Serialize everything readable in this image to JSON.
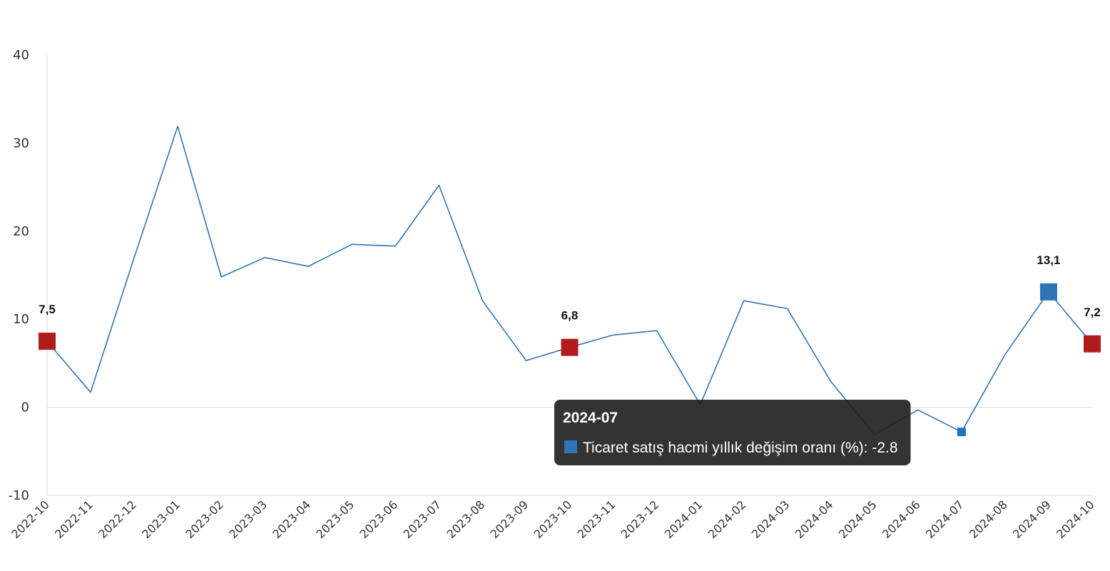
{
  "chart_data": {
    "type": "line",
    "title": "",
    "xlabel": "",
    "ylabel": "",
    "ylim": [
      -10,
      40
    ],
    "yticks": [
      -10,
      0,
      10,
      20,
      30,
      40
    ],
    "grid": "zero-line only",
    "categories": [
      "2022-10",
      "2022-11",
      "2022-12",
      "2023-01",
      "2023-02",
      "2023-03",
      "2023-04",
      "2023-05",
      "2023-06",
      "2023-07",
      "2023-08",
      "2023-09",
      "2023-10",
      "2023-11",
      "2023-12",
      "2024-01",
      "2024-02",
      "2024-03",
      "2024-04",
      "2024-05",
      "2024-06",
      "2024-07",
      "2024-08",
      "2024-09",
      "2024-10"
    ],
    "series": [
      {
        "name": "Ticaret satış hacmi yıllık değişim oranı (%)",
        "color": "#2e75b6",
        "values": [
          7.5,
          1.7,
          17.0,
          31.9,
          14.8,
          17.0,
          16.0,
          18.5,
          18.3,
          25.2,
          12.1,
          5.3,
          6.8,
          8.2,
          8.7,
          0.3,
          12.1,
          11.2,
          2.9,
          -3.1,
          -0.3,
          -2.8,
          6.0,
          13.1,
          7.2
        ]
      }
    ],
    "data_labels": [
      {
        "category": "2022-10",
        "text": "7,5",
        "marker_color": "#b01c1c"
      },
      {
        "category": "2023-10",
        "text": "6,8",
        "marker_color": "#b01c1c"
      },
      {
        "category": "2024-09",
        "text": "13,1",
        "marker_color": "#2e75b6"
      },
      {
        "category": "2024-10",
        "text": "7,2",
        "marker_color": "#b01c1c"
      }
    ],
    "hover_marker_color": "#1a73c9",
    "tooltip": {
      "category": "2024-07",
      "title": "2024-07",
      "text": "Ticaret satış hacmi yıllık değişim oranı (%): -2.8",
      "swatch_color": "#2e75b6"
    }
  }
}
